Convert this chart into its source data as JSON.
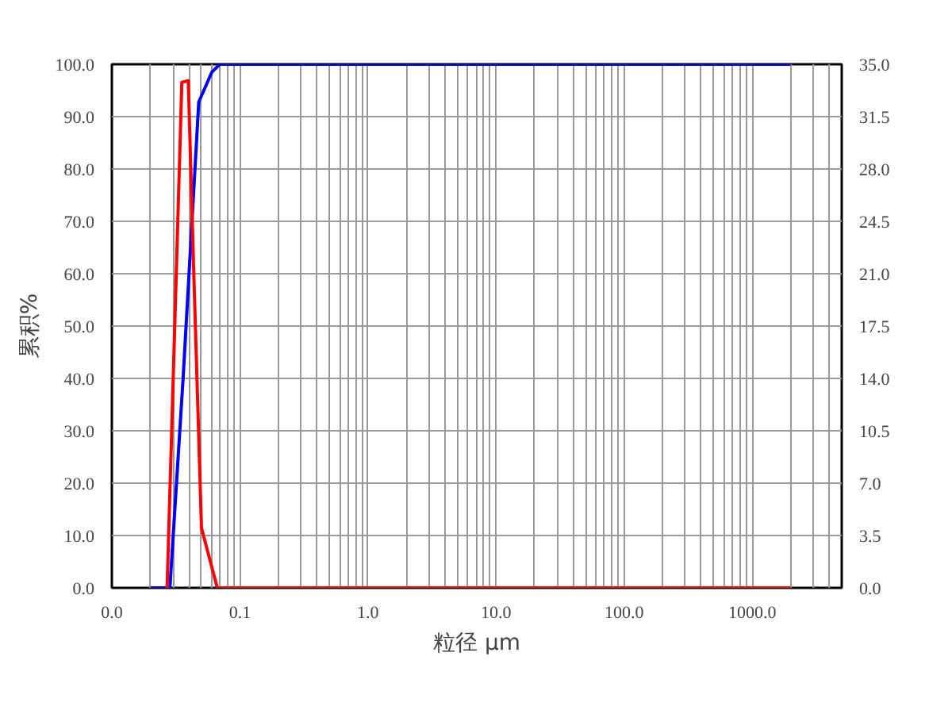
{
  "chart_data": {
    "type": "line",
    "xlabel": "粒径 μm",
    "ylabel": "累积%",
    "log": "x",
    "grid": true,
    "marker": "none",
    "line_style": "solid",
    "xlim": [
      0.01,
      5000
    ],
    "xticks": [
      {
        "value": 0.01,
        "label": "0.0"
      },
      {
        "value": 0.02,
        "label": null
      },
      {
        "value": 0.03,
        "label": null
      },
      {
        "value": 0.04,
        "label": null
      },
      {
        "value": 0.05,
        "label": null
      },
      {
        "value": 0.06,
        "label": null
      },
      {
        "value": 0.07,
        "label": null
      },
      {
        "value": 0.08,
        "label": null
      },
      {
        "value": 0.09,
        "label": null
      },
      0.1,
      {
        "value": 0.2,
        "label": null
      },
      {
        "value": 0.3,
        "label": null
      },
      {
        "value": 0.4,
        "label": null
      },
      {
        "value": 0.5,
        "label": null
      },
      {
        "value": 0.6,
        "label": null
      },
      {
        "value": 0.7,
        "label": null
      },
      {
        "value": 0.8,
        "label": null
      },
      {
        "value": 0.9,
        "label": null
      },
      {
        "value": 1,
        "label": "1.0"
      },
      {
        "value": 2,
        "label": null
      },
      {
        "value": 3,
        "label": null
      },
      {
        "value": 4,
        "label": null
      },
      {
        "value": 5,
        "label": null
      },
      {
        "value": 6,
        "label": null
      },
      {
        "value": 7,
        "label": null
      },
      {
        "value": 8,
        "label": null
      },
      {
        "value": 9,
        "label": null
      },
      {
        "value": 10,
        "label": "10.0"
      },
      {
        "value": 20,
        "label": null
      },
      {
        "value": 30,
        "label": null
      },
      {
        "value": 40,
        "label": null
      },
      {
        "value": 50,
        "label": null
      },
      {
        "value": 60,
        "label": null
      },
      {
        "value": 70,
        "label": null
      },
      {
        "value": 80,
        "label": null
      },
      {
        "value": 90,
        "label": null
      },
      {
        "value": 100,
        "label": "100.0"
      },
      {
        "value": 200,
        "label": null
      },
      {
        "value": 300,
        "label": null
      },
      {
        "value": 400,
        "label": null
      },
      {
        "value": 500,
        "label": null
      },
      {
        "value": 600,
        "label": null
      },
      {
        "value": 700,
        "label": null
      },
      {
        "value": 800,
        "label": null
      },
      {
        "value": 900,
        "label": null
      },
      {
        "value": 1000,
        "label": "1000.0"
      },
      {
        "value": 2000,
        "label": null
      },
      {
        "value": 3000,
        "label": null
      },
      {
        "value": 4000,
        "label": null
      }
    ],
    "ylim": [
      0,
      100
    ],
    "yticks": [
      {
        "value": 0,
        "label": "0.0"
      },
      {
        "value": 10,
        "label": "10.0"
      },
      {
        "value": 20,
        "label": "20.0"
      },
      {
        "value": 30,
        "label": "30.0"
      },
      {
        "value": 40,
        "label": "40.0"
      },
      {
        "value": 50,
        "label": "50.0"
      },
      {
        "value": 60,
        "label": "60.0"
      },
      {
        "value": 70,
        "label": "70.0"
      },
      {
        "value": 80,
        "label": "80.0"
      },
      {
        "value": 90,
        "label": "90.0"
      },
      {
        "value": 100,
        "label": "100.0"
      }
    ],
    "y2lim": [
      0,
      35
    ],
    "y2ticks": [
      {
        "value": 0,
        "label": "0.0"
      },
      3.5,
      {
        "value": 7,
        "label": "7.0"
      },
      10.5,
      {
        "value": 14,
        "label": "14.0"
      },
      17.5,
      {
        "value": 21,
        "label": "21.0"
      },
      24.5,
      {
        "value": 28,
        "label": "28.0"
      },
      31.5,
      {
        "value": 35,
        "label": "35.0"
      }
    ],
    "series": [
      {
        "color": "#0000ff",
        "x": [
          0.02,
          0.0284,
          0.036,
          0.0477,
          0.0604,
          0.0697,
          2000
        ],
        "values": [
          0,
          0,
          40,
          92.8,
          98.5,
          100,
          100
        ]
      },
      {
        "color": "#ff0000",
        "axis": "y2",
        "x": [
          0.027,
          0.0352,
          0.0395,
          0.0435,
          0.0501,
          0.0666,
          2000
        ],
        "values": [
          0,
          33.8,
          33.9,
          21.4,
          4.0,
          0,
          0
        ]
      }
    ]
  }
}
